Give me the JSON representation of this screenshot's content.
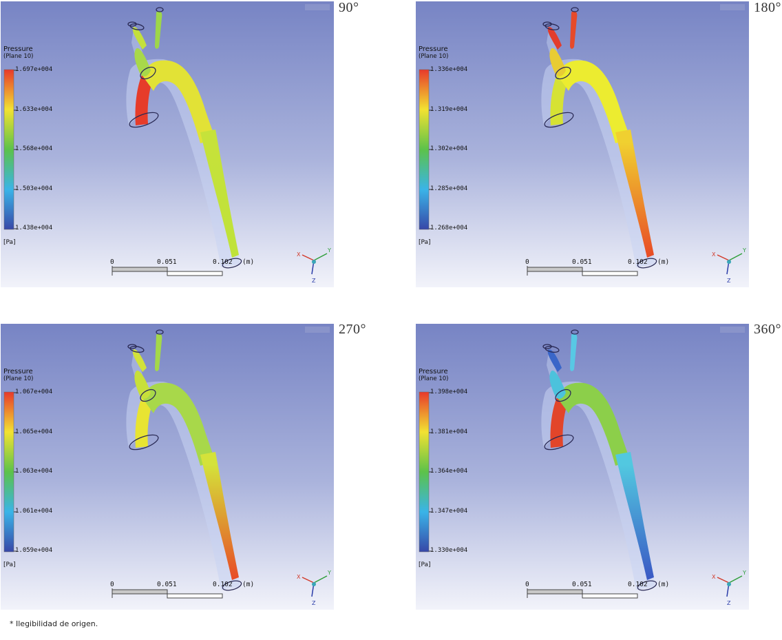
{
  "panels": [
    {
      "angle": "90°",
      "legend": {
        "title": "Pressure",
        "subtitle": "(Plane 10)",
        "ticks": [
          "1.697e+004",
          "1.633e+004",
          "1.568e+004",
          "1.503e+004",
          "1.438e+004"
        ],
        "unit": "[Pa]"
      },
      "colors": {
        "arch": "#e2e236",
        "descending": "#c6e23a",
        "distal": "#bfe23a",
        "root": "#e63c2a",
        "branch_a": "#a8d84a",
        "branch_b": "#c4e03c",
        "branch_c": "#9ed64a"
      }
    },
    {
      "angle": "180°",
      "legend": {
        "title": "Pressure",
        "subtitle": "(Plane 10)",
        "ticks": [
          "1.336e+004",
          "1.319e+004",
          "1.302e+004",
          "1.285e+004",
          "1.268e+004"
        ],
        "unit": "[Pa]"
      },
      "colors": {
        "arch": "#ecec30",
        "descending": "#f0d030",
        "distal": "#e84a26",
        "root": "#d6e234",
        "branch_a": "#e8cc34",
        "branch_b": "#e23c2c",
        "branch_c": "#e64a2a"
      }
    },
    {
      "angle": "270°",
      "legend": {
        "title": "Pressure",
        "subtitle": "(Plane 10)",
        "ticks": [
          "1.067e+004",
          "1.065e+004",
          "1.063e+004",
          "1.061e+004",
          "1.059e+004"
        ],
        "unit": "[Pa]"
      },
      "colors": {
        "arch": "#a8d84a",
        "descending": "#d4e23a",
        "distal": "#e84a26",
        "root": "#e8e432",
        "branch_a": "#c8e03a",
        "branch_b": "#d2e23a",
        "branch_c": "#a4d84a"
      }
    },
    {
      "angle": "360°",
      "legend": {
        "title": "Pressure",
        "subtitle": "(Plane 10)",
        "ticks": [
          "1.398e+004",
          "1.381e+004",
          "1.364e+004",
          "1.347e+004",
          "1.330e+004"
        ],
        "unit": "[Pa]"
      },
      "colors": {
        "arch": "#8ccf4a",
        "descending": "#52c8e0",
        "distal": "#3a58c4",
        "root": "#e2452a",
        "branch_a": "#4cc2dc",
        "branch_b": "#3a66c8",
        "branch_c": "#58c8e4"
      }
    }
  ],
  "scale": {
    "labels": [
      "0",
      "0.051",
      "0.102"
    ],
    "unit": "(m)"
  },
  "axes": {
    "x": "X",
    "y": "Y",
    "z": "Z"
  },
  "footnote": "* Ilegibilidad de origen."
}
